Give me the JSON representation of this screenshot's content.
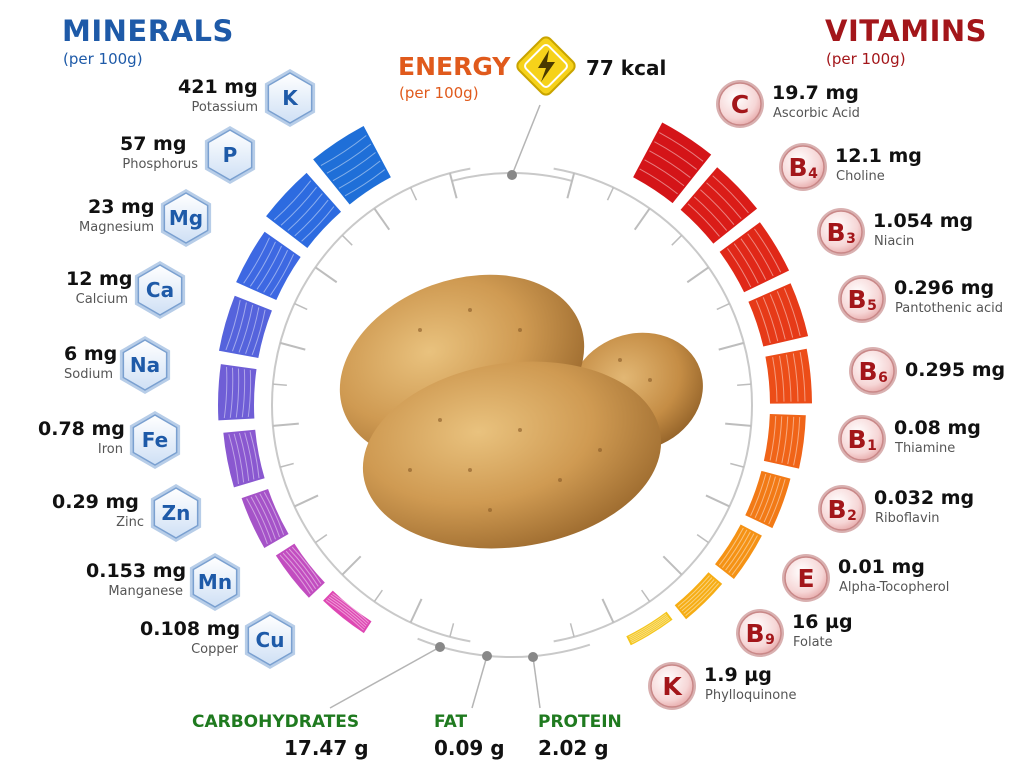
{
  "minerals": {
    "title": "MINERALS",
    "subtitle": "(per 100g)",
    "items": [
      {
        "value": "421 mg",
        "name": "Potassium",
        "symbol": "K"
      },
      {
        "value": "57 mg",
        "name": "Phosphorus",
        "symbol": "P"
      },
      {
        "value": "23 mg",
        "name": "Magnesium",
        "symbol": "Mg"
      },
      {
        "value": "12 mg",
        "name": "Calcium",
        "symbol": "Ca"
      },
      {
        "value": "6 mg",
        "name": "Sodium",
        "symbol": "Na"
      },
      {
        "value": "0.78 mg",
        "name": "Iron",
        "symbol": "Fe"
      },
      {
        "value": "0.29 mg",
        "name": "Zinc",
        "symbol": "Zn"
      },
      {
        "value": "0.153 mg",
        "name": "Manganese",
        "symbol": "Mn"
      },
      {
        "value": "0.108 mg",
        "name": "Copper",
        "symbol": "Cu"
      }
    ]
  },
  "energy": {
    "title": "ENERGY",
    "subtitle": "(per 100g)",
    "value": "77 kcal",
    "icon": "lightning-icon"
  },
  "vitamins": {
    "title": "VITAMINS",
    "subtitle": "(per 100g)",
    "items": [
      {
        "value": "19.7 mg",
        "name": "Ascorbic Acid",
        "letter": "C",
        "sub": ""
      },
      {
        "value": "12.1 mg",
        "name": "Choline",
        "letter": "B",
        "sub": "4"
      },
      {
        "value": "1.054 mg",
        "name": "Niacin",
        "letter": "B",
        "sub": "3"
      },
      {
        "value": "0.296 mg",
        "name": "Pantothenic acid",
        "letter": "B",
        "sub": "5"
      },
      {
        "value": "0.295 mg",
        "name": "",
        "letter": "B",
        "sub": "6"
      },
      {
        "value": "0.08 mg",
        "name": "Thiamine",
        "letter": "B",
        "sub": "1"
      },
      {
        "value": "0.032 mg",
        "name": "Riboflavin",
        "letter": "B",
        "sub": "2"
      },
      {
        "value": "0.01 mg",
        "name": "Alpha-Tocopherol",
        "letter": "E",
        "sub": ""
      },
      {
        "value": "16 µg",
        "name": "Folate",
        "letter": "B",
        "sub": "9"
      },
      {
        "value": "1.9 µg",
        "name": "Phylloquinone",
        "letter": "K",
        "sub": ""
      }
    ]
  },
  "macros": {
    "carbohydrates": {
      "name": "CARBOHYDRATES",
      "value": "17.47 g"
    },
    "fat": {
      "name": "FAT",
      "value": "0.09 g"
    },
    "protein": {
      "name": "PROTEIN",
      "value": "2.02 g"
    }
  },
  "colors": {
    "minerals_title": "#1e5aa8",
    "vitamins_title": "#a3161a",
    "energy_title": "#e05a1c",
    "macro_label": "#1f7a1f"
  }
}
